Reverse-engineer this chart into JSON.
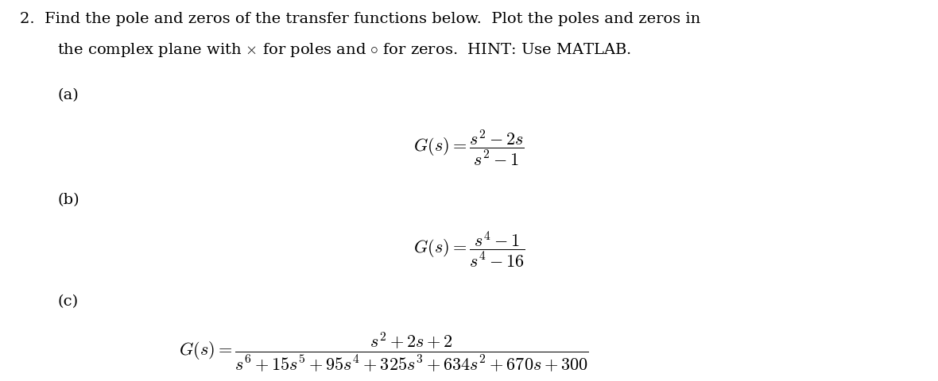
{
  "background_color": "#ffffff",
  "title_line1": "2.  Find the pole and zeros of the transfer functions below.  Plot the poles and zeros in",
  "title_line2": "the complex plane with $\\times$ for poles and $\\circ$ for zeros.  HINT: Use MATLAB.",
  "part_a_label": "(a)",
  "part_a_eq": "$G(s) = \\dfrac{s^2 - 2s}{s^2 - 1}$",
  "part_b_label": "(b)",
  "part_b_eq": "$G(s) = \\dfrac{s^4 - 1}{s^4 - 16}$",
  "part_c_label": "(c)",
  "part_c_lhs": "$G(s) = $",
  "part_c_num": "$s^2 + 2s + 2$",
  "part_c_den": "$s^6 + 15s^5 + 95s^4 + 325s^3 + 634s^2 + 670s + 300$",
  "font_size_body": 14,
  "font_size_label": 14,
  "font_size_eq": 16
}
